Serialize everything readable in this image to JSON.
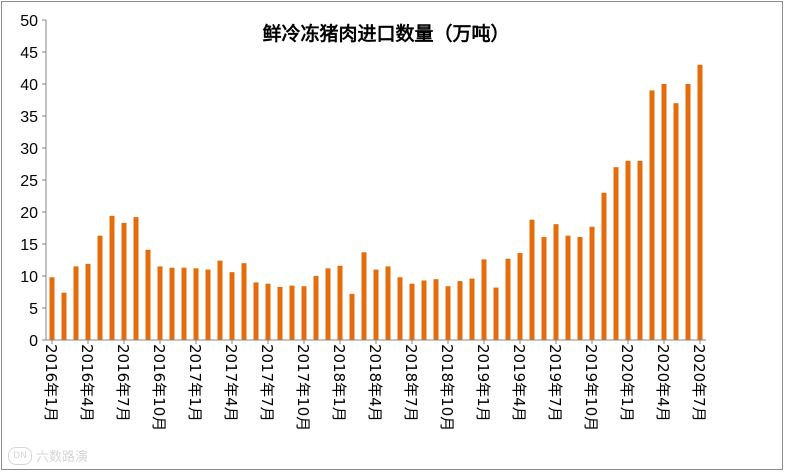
{
  "chart_data": {
    "type": "bar",
    "title": "鲜冷冻猪肉进口数量（万吨）",
    "xlabel": "",
    "ylabel": "",
    "ylim": [
      0,
      50
    ],
    "yticks": [
      0,
      5,
      10,
      15,
      20,
      25,
      30,
      35,
      40,
      45,
      50
    ],
    "grid": false,
    "legend": "none",
    "bar_color": "#E46C0A",
    "categories": [
      "2016年1月",
      "2016年2月",
      "2016年3月",
      "2016年4月",
      "2016年5月",
      "2016年6月",
      "2016年7月",
      "2016年8月",
      "2016年9月",
      "2016年10月",
      "2016年11月",
      "2016年12月",
      "2017年1月",
      "2017年2月",
      "2017年3月",
      "2017年4月",
      "2017年5月",
      "2017年6月",
      "2017年7月",
      "2017年8月",
      "2017年9月",
      "2017年10月",
      "2017年11月",
      "2017年12月",
      "2018年1月",
      "2018年2月",
      "2018年3月",
      "2018年4月",
      "2018年5月",
      "2018年6月",
      "2018年7月",
      "2018年8月",
      "2018年9月",
      "2018年10月",
      "2018年11月",
      "2018年12月",
      "2019年1月",
      "2019年2月",
      "2019年3月",
      "2019年4月",
      "2019年5月",
      "2019年6月",
      "2019年7月",
      "2019年8月",
      "2019年9月",
      "2019年10月",
      "2019年11月",
      "2019年12月",
      "2020年1月",
      "2020年2月",
      "2020年3月",
      "2020年4月",
      "2020年5月",
      "2020年6月",
      "2020年7月"
    ],
    "tick_labels": [
      "2016年1月",
      "2016年4月",
      "2016年7月",
      "2016年10月",
      "2017年1月",
      "2017年4月",
      "2017年7月",
      "2017年10月",
      "2018年1月",
      "2018年4月",
      "2018年7月",
      "2018年10月",
      "2019年1月",
      "2019年4月",
      "2019年7月",
      "2019年10月",
      "2020年1月",
      "2020年4月",
      "2020年7月"
    ],
    "values": [
      9.8,
      7.4,
      11.5,
      11.9,
      16.3,
      19.4,
      18.3,
      19.2,
      14.1,
      11.5,
      11.3,
      11.3,
      11.2,
      11.0,
      12.4,
      10.6,
      12.0,
      9.0,
      8.8,
      8.3,
      8.5,
      8.4,
      10.0,
      11.2,
      11.6,
      7.2,
      13.7,
      11.0,
      11.5,
      9.8,
      8.8,
      9.3,
      9.5,
      8.4,
      9.2,
      9.6,
      12.6,
      8.2,
      12.7,
      13.6,
      18.8,
      16.1,
      18.1,
      16.3,
      16.1,
      17.7,
      23.0,
      27.0,
      28.0,
      28.0,
      39.0,
      40.0,
      37.0,
      40.0,
      43.0
    ]
  },
  "watermark": {
    "logo_text": "DN",
    "text": "六数路演"
  }
}
